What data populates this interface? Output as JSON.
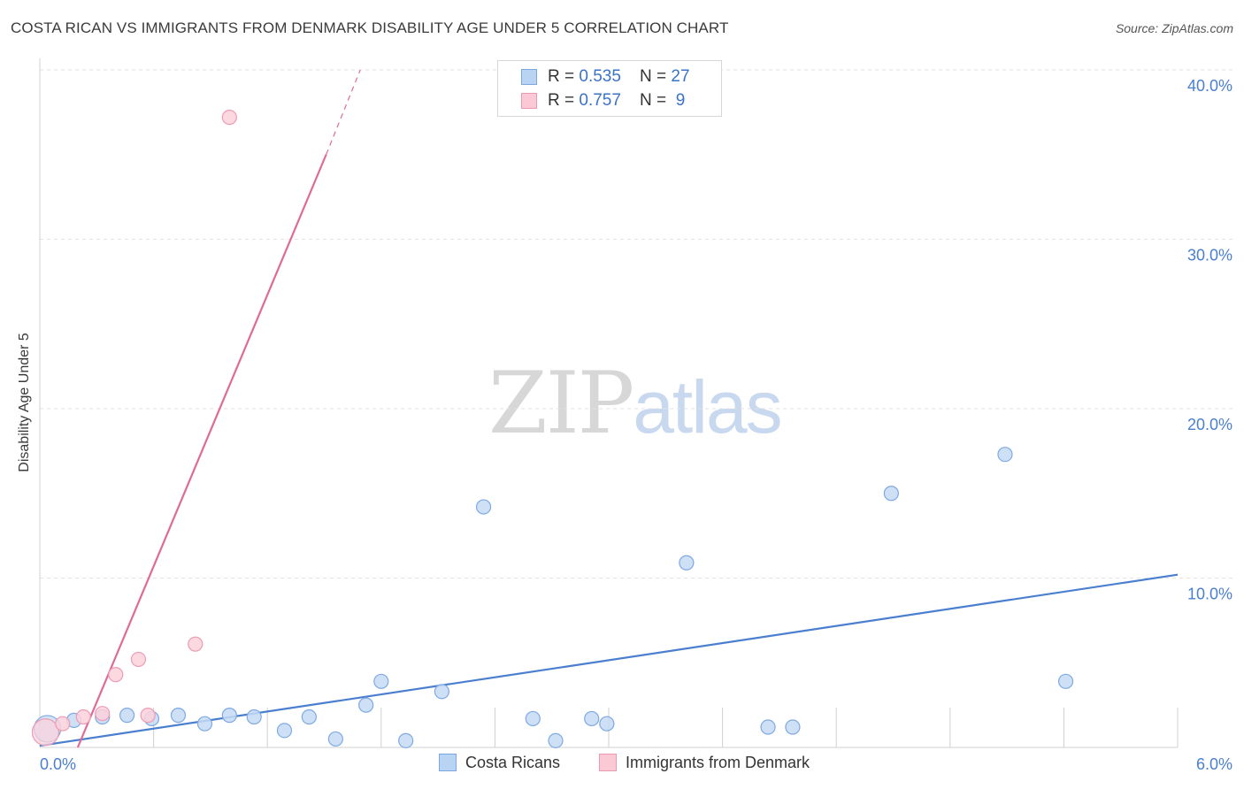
{
  "title": "COSTA RICAN VS IMMIGRANTS FROM DENMARK DISABILITY AGE UNDER 5 CORRELATION CHART",
  "source": "Source: ZipAtlas.com",
  "watermark": {
    "zip": "ZIP",
    "atlas": "atlas"
  },
  "legend": {
    "rows": [
      {
        "r_label": "R = ",
        "r_value": "0.535",
        "n_label": "N = ",
        "n_value": "27",
        "color": "#b9d3f3",
        "border": "#7ba7e0"
      },
      {
        "r_label": "R = ",
        "r_value": "0.757",
        "n_label": "N = ",
        "n_value": " 9",
        "color": "#fbc9d6",
        "border": "#e99ab0"
      }
    ]
  },
  "bottom_legend": [
    {
      "label": "Costa Ricans",
      "color": "#b9d3f3",
      "border": "#7ba7e0"
    },
    {
      "label": "Immigrants from Denmark",
      "color": "#fbc9d6",
      "border": "#e99ab0"
    }
  ],
  "chart_data": {
    "type": "scatter",
    "title": "COSTA RICAN VS IMMIGRANTS FROM DENMARK DISABILITY AGE UNDER 5 CORRELATION CHART",
    "xlabel": "",
    "ylabel": "Disability Age Under 5",
    "xlim": [
      0,
      6.0
    ],
    "ylim": [
      0,
      40
    ],
    "x_tick_labels": [
      "0.0%",
      "6.0%"
    ],
    "y_ticks": [
      10,
      20,
      30,
      40
    ],
    "y_tick_labels": [
      "10.0%",
      "20.0%",
      "30.0%",
      "40.0%"
    ],
    "grid": true,
    "series": [
      {
        "name": "Costa Ricans",
        "color": "#4a7fd0",
        "fill": "#c6dbf5",
        "stroke": "#7ea9e2",
        "points": [
          {
            "x": 0.04,
            "y": 1.1,
            "big": true
          },
          {
            "x": 0.18,
            "y": 1.6
          },
          {
            "x": 0.33,
            "y": 1.8
          },
          {
            "x": 0.46,
            "y": 1.9
          },
          {
            "x": 0.59,
            "y": 1.7
          },
          {
            "x": 0.73,
            "y": 1.9
          },
          {
            "x": 0.87,
            "y": 1.4
          },
          {
            "x": 1.0,
            "y": 1.9
          },
          {
            "x": 1.13,
            "y": 1.8
          },
          {
            "x": 1.29,
            "y": 1.0
          },
          {
            "x": 1.42,
            "y": 1.8
          },
          {
            "x": 1.56,
            "y": 0.5
          },
          {
            "x": 1.72,
            "y": 2.5
          },
          {
            "x": 1.8,
            "y": 3.9
          },
          {
            "x": 1.93,
            "y": 0.4
          },
          {
            "x": 2.12,
            "y": 3.3
          },
          {
            "x": 2.34,
            "y": 14.2
          },
          {
            "x": 2.6,
            "y": 1.7
          },
          {
            "x": 2.72,
            "y": 0.4
          },
          {
            "x": 2.91,
            "y": 1.7
          },
          {
            "x": 2.99,
            "y": 1.4
          },
          {
            "x": 3.41,
            "y": 10.9
          },
          {
            "x": 3.84,
            "y": 1.2
          },
          {
            "x": 3.97,
            "y": 1.2
          },
          {
            "x": 4.49,
            "y": 15.0
          },
          {
            "x": 5.09,
            "y": 17.3
          },
          {
            "x": 5.41,
            "y": 3.9
          }
        ],
        "trend": {
          "x1": 0.0,
          "y1": 0.1,
          "x2": 6.0,
          "y2": 10.2
        }
      },
      {
        "name": "Immigrants from Denmark",
        "color": "#e06a96",
        "fill": "#fbd1dc",
        "stroke": "#ec9cb4",
        "points": [
          {
            "x": 0.03,
            "y": 0.9,
            "big": true
          },
          {
            "x": 0.12,
            "y": 1.4
          },
          {
            "x": 0.23,
            "y": 1.8
          },
          {
            "x": 0.33,
            "y": 2.0
          },
          {
            "x": 0.4,
            "y": 4.3
          },
          {
            "x": 0.52,
            "y": 5.2
          },
          {
            "x": 0.57,
            "y": 1.9
          },
          {
            "x": 0.82,
            "y": 6.1
          },
          {
            "x": 1.0,
            "y": 37.2
          }
        ],
        "trend": {
          "x1": 0.2,
          "y1": 0.0,
          "x2": 1.51,
          "y2": 35.0
        },
        "trend_dashed": {
          "x1": 1.51,
          "y1": 35.0,
          "x2": 1.69,
          "y2": 40.0
        }
      }
    ]
  }
}
